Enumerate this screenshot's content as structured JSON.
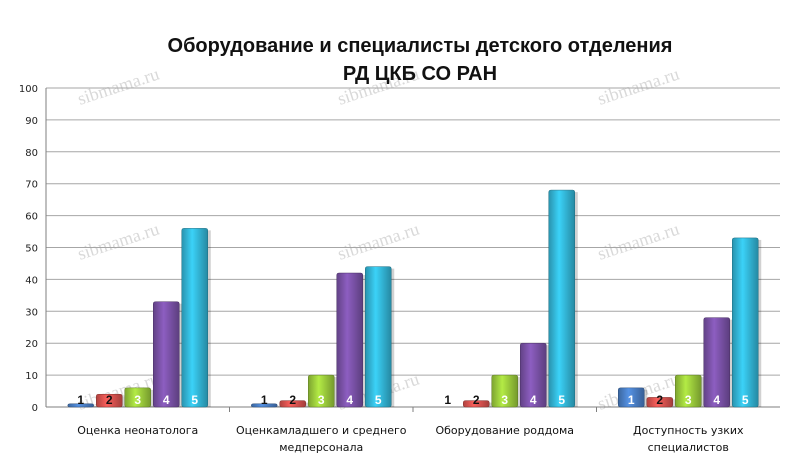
{
  "chart_data": {
    "type": "bar",
    "title": "Оборудование и специалисты детского отделения",
    "subtitle": "РД ЦКБ СО РАН",
    "ylim": [
      0,
      100
    ],
    "yticks": [
      0,
      10,
      20,
      30,
      40,
      50,
      60,
      70,
      80,
      90,
      100
    ],
    "grid": true,
    "categories": [
      [
        "Оценка неонатолога"
      ],
      [
        "Оценкамладшего и среднего",
        "медперсонала"
      ],
      [
        "Оборудование роддома"
      ],
      [
        "Доступность узких",
        "специалистов"
      ]
    ],
    "series": [
      {
        "name": "1",
        "color": "#4a7fc6",
        "values": [
          1,
          1,
          0,
          6
        ]
      },
      {
        "name": "2",
        "color": "#d9534f",
        "values": [
          4,
          2,
          2,
          3
        ]
      },
      {
        "name": "3",
        "color": "#9ccc3c",
        "values": [
          6,
          10,
          10,
          10
        ]
      },
      {
        "name": "4",
        "color": "#7b52a8",
        "values": [
          33,
          42,
          20,
          28
        ]
      },
      {
        "name": "5",
        "color": "#33b7d8",
        "values": [
          56,
          44,
          68,
          53
        ]
      }
    ],
    "watermark": "sibmama.ru"
  }
}
